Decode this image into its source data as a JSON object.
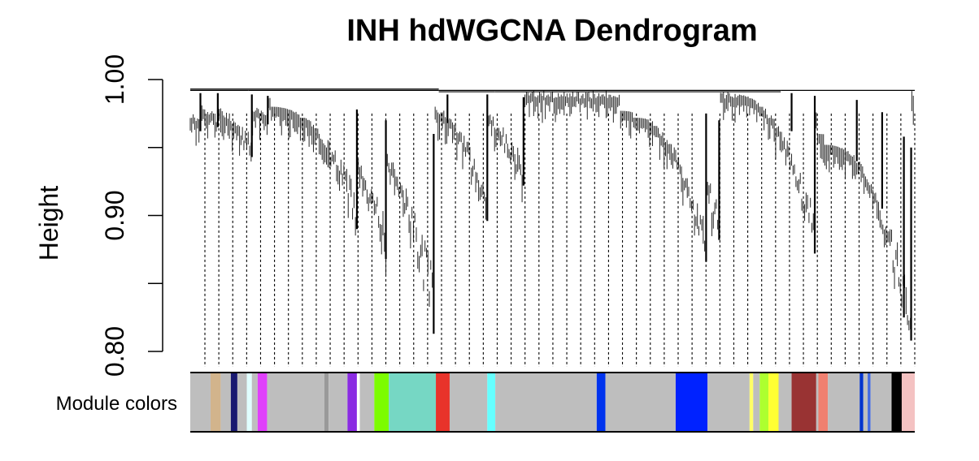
{
  "chart_data": {
    "type": "dendrogram",
    "title": "INH hdWGCNA Dendrogram",
    "ylabel": "Height",
    "ylim": [
      0.8,
      1.0
    ],
    "y_ticks": [
      0.8,
      0.85,
      0.9,
      0.95,
      1.0
    ],
    "y_tick_labels": [
      "0.80",
      "",
      "0.90",
      "",
      "1.00"
    ],
    "colorbar_label": "Module colors",
    "leaf_count": 1000,
    "dashed_guide_lines": 52,
    "top_merges": [
      {
        "from": 0.0,
        "to": 0.343,
        "height": 0.993
      },
      {
        "from": 0.0,
        "to": 0.08,
        "height": 0.992
      },
      {
        "from": 0.08,
        "to": 0.343,
        "height": 0.992
      },
      {
        "from": 0.343,
        "to": 0.815,
        "height": 0.992
      },
      {
        "from": 0.343,
        "to": 0.42,
        "height": 0.991
      },
      {
        "from": 0.42,
        "to": 0.815,
        "height": 0.991
      },
      {
        "from": 0.815,
        "to": 1.0,
        "height": 0.992
      }
    ],
    "branches": [
      {
        "pos": 0.014,
        "top": 0.99,
        "bottom": 0.962
      },
      {
        "pos": 0.038,
        "top": 0.99,
        "bottom": 0.965
      },
      {
        "pos": 0.085,
        "top": 0.989,
        "bottom": 0.943
      },
      {
        "pos": 0.107,
        "top": 0.988,
        "bottom": 0.967
      },
      {
        "pos": 0.23,
        "top": 0.978,
        "bottom": 0.89
      },
      {
        "pos": 0.27,
        "top": 0.97,
        "bottom": 0.868
      },
      {
        "pos": 0.336,
        "top": 0.96,
        "bottom": 0.813
      },
      {
        "pos": 0.355,
        "top": 0.989,
        "bottom": 0.968
      },
      {
        "pos": 0.41,
        "top": 0.989,
        "bottom": 0.896
      },
      {
        "pos": 0.46,
        "top": 0.987,
        "bottom": 0.922
      },
      {
        "pos": 0.712,
        "top": 0.975,
        "bottom": 0.866
      },
      {
        "pos": 0.73,
        "top": 0.97,
        "bottom": 0.882
      },
      {
        "pos": 0.83,
        "top": 0.99,
        "bottom": 0.962
      },
      {
        "pos": 0.862,
        "top": 0.988,
        "bottom": 0.872
      },
      {
        "pos": 0.92,
        "top": 0.985,
        "bottom": 0.94
      },
      {
        "pos": 0.955,
        "top": 0.976,
        "bottom": 0.905
      },
      {
        "pos": 0.985,
        "top": 0.958,
        "bottom": 0.825
      },
      {
        "pos": 0.995,
        "top": 0.95,
        "bottom": 0.808
      }
    ],
    "module_colors": [
      {
        "start": 0.0,
        "end": 0.028,
        "color": "#BEBEBE"
      },
      {
        "start": 0.028,
        "end": 0.042,
        "color": "#D2B48C"
      },
      {
        "start": 0.042,
        "end": 0.056,
        "color": "#BEBEBE"
      },
      {
        "start": 0.056,
        "end": 0.065,
        "color": "#191970"
      },
      {
        "start": 0.065,
        "end": 0.078,
        "color": "#BEBEBE"
      },
      {
        "start": 0.078,
        "end": 0.085,
        "color": "#E0FFFF"
      },
      {
        "start": 0.085,
        "end": 0.093,
        "color": "#BEBEBE"
      },
      {
        "start": 0.093,
        "end": 0.106,
        "color": "#E040FB"
      },
      {
        "start": 0.106,
        "end": 0.185,
        "color": "#BEBEBE"
      },
      {
        "start": 0.185,
        "end": 0.191,
        "color": "#999999"
      },
      {
        "start": 0.191,
        "end": 0.217,
        "color": "#BEBEBE"
      },
      {
        "start": 0.217,
        "end": 0.23,
        "color": "#8A2BE2"
      },
      {
        "start": 0.23,
        "end": 0.234,
        "color": "#FFFFFF"
      },
      {
        "start": 0.234,
        "end": 0.254,
        "color": "#BEBEBE"
      },
      {
        "start": 0.254,
        "end": 0.274,
        "color": "#7CFC00"
      },
      {
        "start": 0.274,
        "end": 0.339,
        "color": "#76D7C4"
      },
      {
        "start": 0.339,
        "end": 0.358,
        "color": "#E8332A"
      },
      {
        "start": 0.358,
        "end": 0.41,
        "color": "#BEBEBE"
      },
      {
        "start": 0.41,
        "end": 0.421,
        "color": "#66FFFF"
      },
      {
        "start": 0.421,
        "end": 0.561,
        "color": "#BEBEBE"
      },
      {
        "start": 0.561,
        "end": 0.573,
        "color": "#0033EE"
      },
      {
        "start": 0.573,
        "end": 0.67,
        "color": "#BEBEBE"
      },
      {
        "start": 0.67,
        "end": 0.714,
        "color": "#0022FF"
      },
      {
        "start": 0.714,
        "end": 0.772,
        "color": "#BEBEBE"
      },
      {
        "start": 0.772,
        "end": 0.777,
        "color": "#FFFF66"
      },
      {
        "start": 0.777,
        "end": 0.786,
        "color": "#BEBEBE"
      },
      {
        "start": 0.786,
        "end": 0.798,
        "color": "#ADFF2F"
      },
      {
        "start": 0.798,
        "end": 0.812,
        "color": "#FFFF33"
      },
      {
        "start": 0.812,
        "end": 0.83,
        "color": "#BEBEBE"
      },
      {
        "start": 0.83,
        "end": 0.864,
        "color": "#993333"
      },
      {
        "start": 0.864,
        "end": 0.867,
        "color": "#BEBEBE"
      },
      {
        "start": 0.867,
        "end": 0.88,
        "color": "#F08070"
      },
      {
        "start": 0.88,
        "end": 0.924,
        "color": "#BEBEBE"
      },
      {
        "start": 0.924,
        "end": 0.929,
        "color": "#0033CC"
      },
      {
        "start": 0.929,
        "end": 0.935,
        "color": "#BEBEBE"
      },
      {
        "start": 0.935,
        "end": 0.939,
        "color": "#4169E1"
      },
      {
        "start": 0.939,
        "end": 0.968,
        "color": "#BEBEBE"
      },
      {
        "start": 0.968,
        "end": 0.982,
        "color": "#000000"
      },
      {
        "start": 0.982,
        "end": 1.0,
        "color": "#F4C2C2"
      }
    ]
  }
}
